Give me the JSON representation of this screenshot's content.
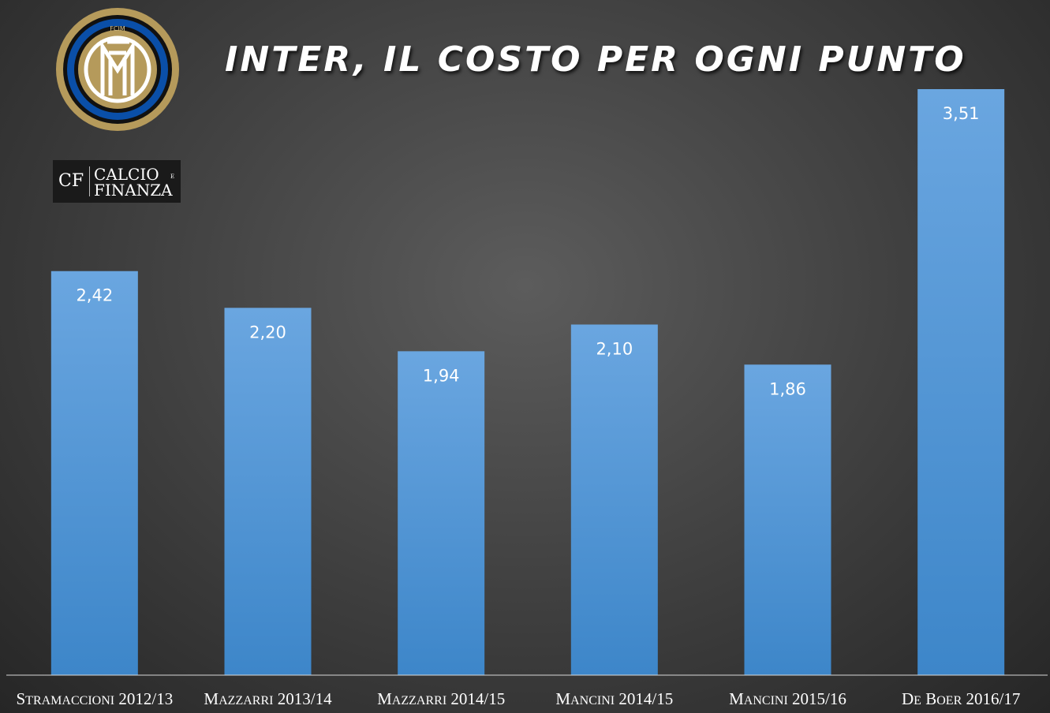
{
  "title": "INTER, IL COSTO PER OGNI PUNTO",
  "logos": {
    "club_logo_icon": "inter-logo-icon",
    "club_logo_letters": "FCIM",
    "publisher_abbr": "CF",
    "publisher_line1": "CALCIO",
    "publisher_line2": "FINANZA",
    "publisher_mark": "E"
  },
  "colors": {
    "bar_top": "#6aa6e0",
    "bar_bottom": "#3d86c9",
    "label": "#ffffff",
    "inter_blue": "#0a4fa8",
    "inter_gold": "#b59a5b"
  },
  "chart_data": {
    "type": "bar",
    "title": "INTER, IL COSTO PER OGNI PUNTO",
    "categories": [
      "Stramaccioni 2012/13",
      "Mazzarri 2013/14",
      "Mazzarri 2014/15",
      "Mancini 2014/15",
      "Mancini 2015/16",
      "De Boer 2016/17"
    ],
    "values": [
      2.42,
      2.2,
      1.94,
      2.1,
      1.86,
      3.51
    ],
    "data_labels": [
      "2,42",
      "2,20",
      "1,94",
      "2,10",
      "1,86",
      "3,51"
    ],
    "ylim": [
      0,
      3.51
    ],
    "xlabel": "",
    "ylabel": "",
    "grid": false,
    "legend": "none"
  }
}
